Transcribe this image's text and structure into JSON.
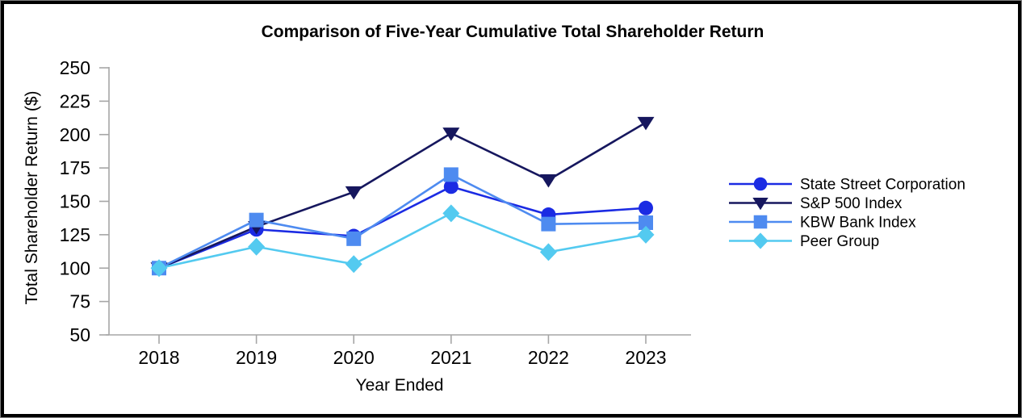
{
  "frame": {
    "background": "#ffffff",
    "outer_border_color": "#808080",
    "inner_border_color": "#000000"
  },
  "chart_data": {
    "type": "line",
    "title": "Comparison of Five-Year Cumulative Total Shareholder Return",
    "xlabel": "Year Ended",
    "ylabel": "Total Shareholder Return ($)",
    "categories": [
      "2018",
      "2019",
      "2020",
      "2021",
      "2022",
      "2023"
    ],
    "ylim": [
      50,
      250
    ],
    "yticks": [
      250,
      225,
      200,
      175,
      150,
      125,
      100,
      75,
      50
    ],
    "grid": false,
    "legend_position": "right",
    "axis_color": "#A6A6A6",
    "text_color": "#000000",
    "series": [
      {
        "name": "State Street Corporation",
        "marker": "circle",
        "color": "#1B2BE3",
        "values": [
          100,
          129,
          124,
          161,
          140,
          145
        ]
      },
      {
        "name": "S&P 500 Index",
        "marker": "triangle-down",
        "color": "#16175E",
        "values": [
          100,
          131,
          157,
          201,
          166,
          209
        ]
      },
      {
        "name": "KBW Bank Index",
        "marker": "square",
        "color": "#4E8BF0",
        "values": [
          100,
          136,
          122,
          170,
          133,
          134
        ]
      },
      {
        "name": "Peer Group",
        "marker": "diamond",
        "color": "#53CAF0",
        "values": [
          100,
          116,
          103,
          141,
          112,
          125
        ]
      }
    ]
  }
}
